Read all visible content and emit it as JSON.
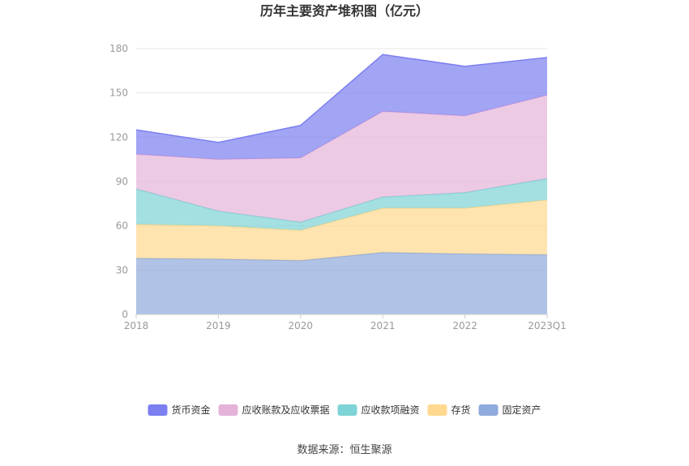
{
  "chart_data": {
    "type": "area",
    "stacked": true,
    "title": "历年主要资产堆积图（亿元）",
    "source": "数据来源：恒生聚源",
    "categories": [
      "2018",
      "2019",
      "2020",
      "2021",
      "2022",
      "2023Q1"
    ],
    "ylim": [
      0,
      180
    ],
    "yticks": [
      "0",
      "30",
      "60",
      "90",
      "120",
      "150",
      "180"
    ],
    "grid": true,
    "legend_position": "bottom",
    "series": [
      {
        "name": "固定资产",
        "color": "#8faadc",
        "values": [
          38,
          37.5,
          36.5,
          42,
          41,
          40.5
        ]
      },
      {
        "name": "存货",
        "color": "#ffd98f",
        "values": [
          23,
          22.5,
          20.5,
          30,
          31,
          37
        ]
      },
      {
        "name": "应收款项融资",
        "color": "#7ed3d6",
        "values": [
          24,
          10,
          5.5,
          7.5,
          10.5,
          14.5
        ]
      },
      {
        "name": "应收账款及应收票据",
        "color": "#e5b3d9",
        "values": [
          23.5,
          35,
          43.5,
          58,
          52,
          56.5
        ]
      },
      {
        "name": "货币资金",
        "color": "#7b7ff0",
        "values": [
          16.5,
          11.5,
          22,
          38.5,
          33.5,
          25.5
        ]
      }
    ]
  }
}
